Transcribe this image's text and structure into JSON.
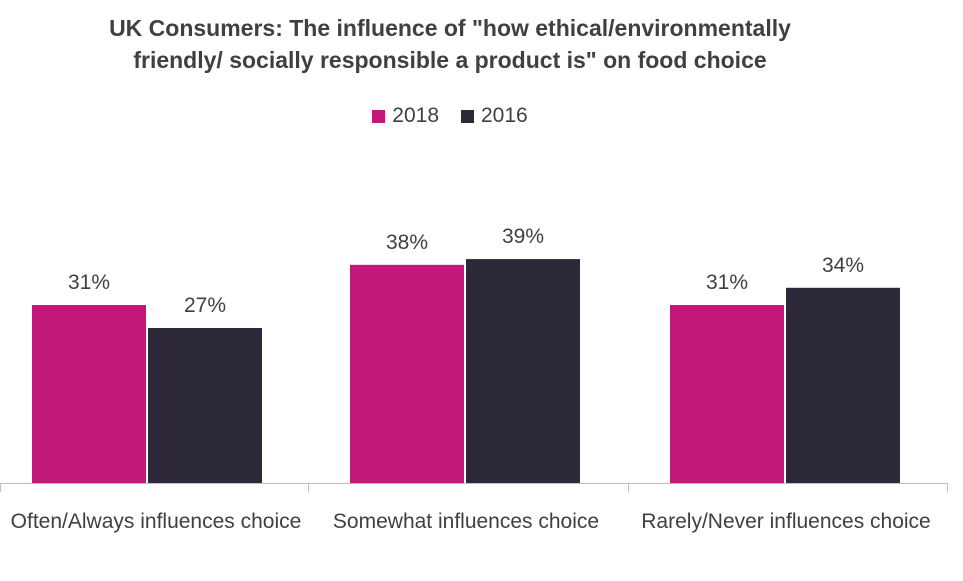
{
  "chart_data": {
    "type": "bar",
    "title_lines": [
      "UK Consumers: The influence of \"how ethical/environmentally",
      "friendly/ socially responsible a product is\" on food choice"
    ],
    "categories": [
      "Often/Always influences choice",
      "Somewhat influences choice",
      "Rarely/Never influences choice"
    ],
    "series": [
      {
        "name": "2018",
        "values": [
          31,
          38,
          31
        ],
        "labels": [
          "31%",
          "38%",
          "31%"
        ],
        "color": "#c2187a"
      },
      {
        "name": "2016",
        "values": [
          27,
          39,
          34
        ],
        "labels": [
          "27%",
          "39%",
          "34%"
        ],
        "color": "#2d2938"
      }
    ],
    "ylim": [
      0,
      58
    ],
    "xlabel": "",
    "ylabel": "",
    "grid": false,
    "legend_position": "top"
  }
}
